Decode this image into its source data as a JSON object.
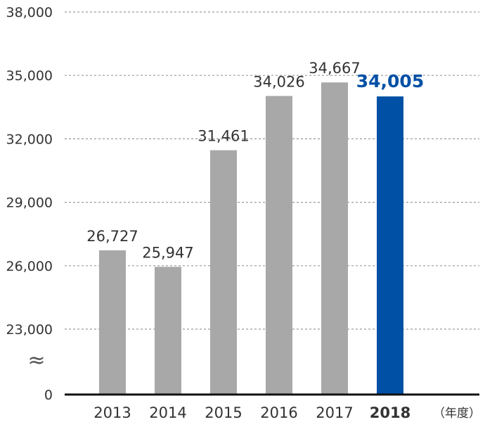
{
  "chart_data": {
    "type": "bar",
    "categories": [
      "2013",
      "2014",
      "2015",
      "2016",
      "2017",
      "2018"
    ],
    "values": [
      26727,
      25947,
      31461,
      34026,
      34667,
      34005
    ],
    "value_labels": [
      "26,727",
      "25,947",
      "31,461",
      "34,026",
      "34,667",
      "34,005"
    ],
    "highlight_index": 5,
    "y_ticks": [
      {
        "value": 38000,
        "label": "38,000"
      },
      {
        "value": 35000,
        "label": "35,000"
      },
      {
        "value": 32000,
        "label": "32,000"
      },
      {
        "value": 29000,
        "label": "29,000"
      },
      {
        "value": 26000,
        "label": "26,000"
      },
      {
        "value": 23000,
        "label": "23,000"
      }
    ],
    "y_zero_label": "0",
    "ylim_display": [
      23000,
      38000
    ],
    "axis_break": true,
    "axis_break_symbol": "≈",
    "x_unit_label": "（年度）",
    "grid": "dashed horizontal",
    "colors": {
      "bar": "#a8a8a8",
      "highlight_bar": "#0050a5",
      "highlight_label": "#0050a5",
      "grid": "#9a9a9a",
      "axis": "#111111",
      "text": "#333333"
    }
  }
}
